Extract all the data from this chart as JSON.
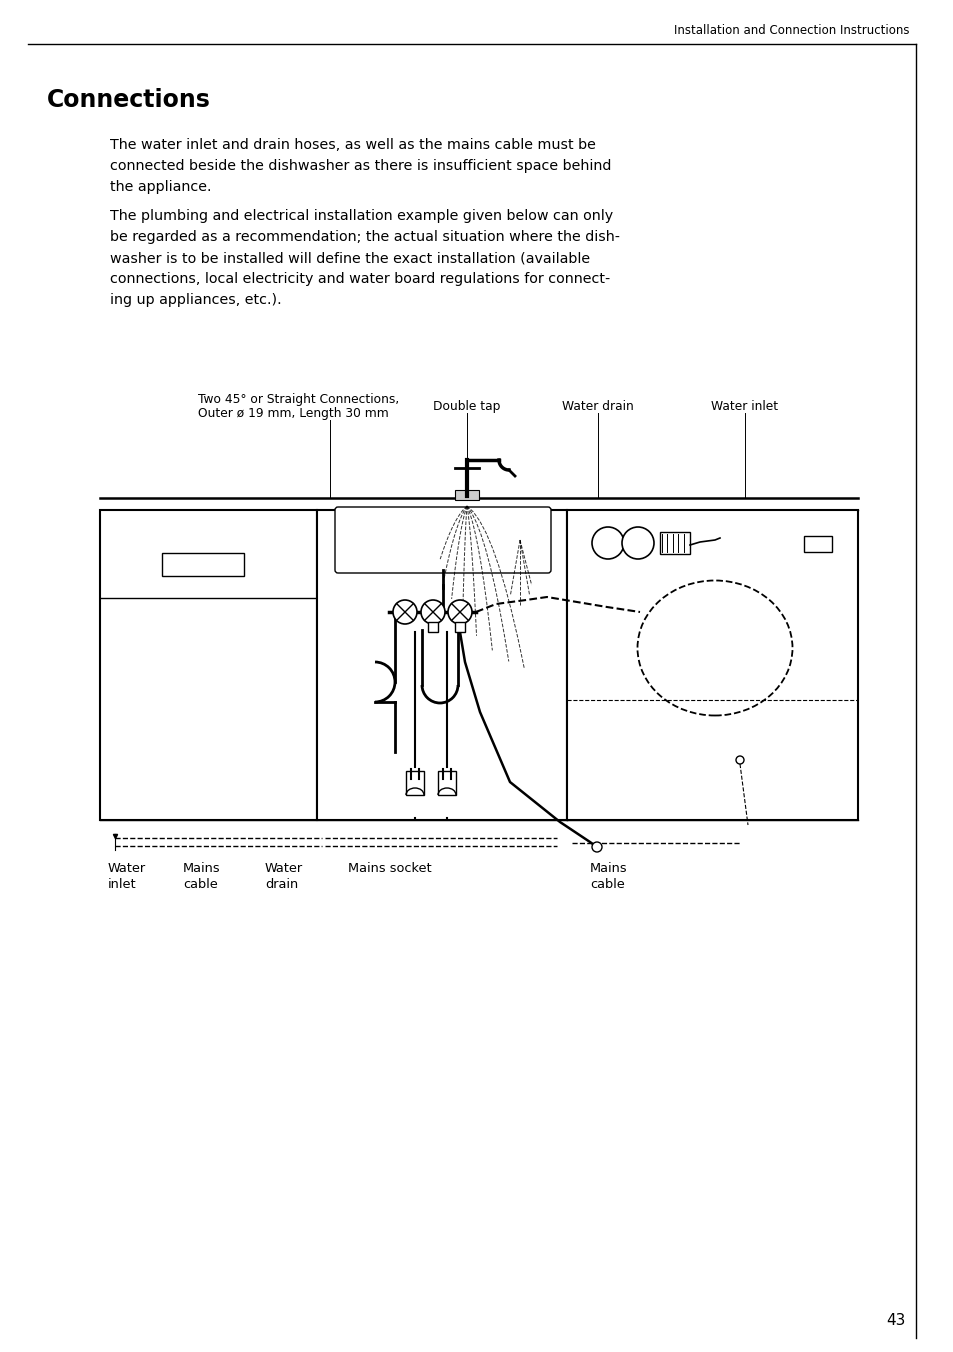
{
  "page_header": "Installation and Connection Instructions",
  "title": "Connections",
  "para1": [
    "The water inlet and drain hoses, as well as the mains cable must be",
    "connected beside the dishwasher as there is insufficient space behind",
    "the appliance."
  ],
  "para2": [
    "The plumbing and electrical installation example given below can only",
    "be regarded as a recommendation; the actual situation where the dish-",
    "washer is to be installed will define the exact installation (available",
    "connections, local electricity and water board regulations for connect-",
    "ing up appliances, etc.)."
  ],
  "lbl_tl1": "Two 45° or Straight Connections,",
  "lbl_tl2": "Outer ø 19 mm, Length 30 mm",
  "lbl_dt": "Double tap",
  "lbl_wd": "Water drain",
  "lbl_wi": "Water inlet",
  "lbl_b1": "Water\ninlet",
  "lbl_b2": "Mains\ncable",
  "lbl_b3": "Water\ndrain",
  "lbl_b4": "Mains socket",
  "lbl_b5": "Mains\ncable",
  "page_num": "43"
}
